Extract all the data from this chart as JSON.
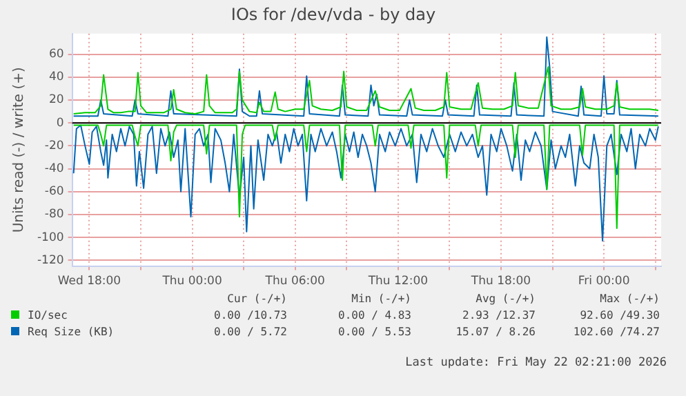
{
  "chart_data": {
    "type": "line",
    "title": "IOs for /dev/vda - by day",
    "ylabel": "Units read (-) / write (+)",
    "xlim": [
      "2026-05-20T17:00",
      "2026-05-22T03:20"
    ],
    "xticks": [
      {
        "value": "2026-05-20T18:00",
        "label": "Wed 18:00"
      },
      {
        "value": "2026-05-20T21:00",
        "label": null
      },
      {
        "value": "2026-05-21T00:00",
        "label": "Thu 00:00"
      },
      {
        "value": "2026-05-21T03:00",
        "label": null
      },
      {
        "value": "2026-05-21T06:00",
        "label": "Thu 06:00"
      },
      {
        "value": "2026-05-21T09:00",
        "label": null
      },
      {
        "value": "2026-05-21T12:00",
        "label": "Thu 12:00"
      },
      {
        "value": "2026-05-21T15:00",
        "label": null
      },
      {
        "value": "2026-05-21T18:00",
        "label": "Thu 18:00"
      },
      {
        "value": "2026-05-21T21:00",
        "label": null
      },
      {
        "value": "2026-05-22T00:00",
        "label": "Fri 00:00"
      },
      {
        "value": "2026-05-22T03:00",
        "label": null
      }
    ],
    "ylim": [
      -125,
      78
    ],
    "yticks": [
      -120,
      -100,
      -80,
      -60,
      -40,
      -20,
      0,
      20,
      40,
      60
    ],
    "grid": true,
    "legend": "bottom left",
    "ref_lines": [
      {
        "axis": "y",
        "value": 0,
        "color": "#000000"
      }
    ],
    "series": [
      {
        "name": "IO/sec",
        "color": "#00cc00",
        "x": [
          "2026-05-20T17:05",
          "2026-05-20T17:45",
          "2026-05-20T18:20",
          "2026-05-20T18:40",
          "2026-05-20T18:50",
          "2026-05-20T19:05",
          "2026-05-20T19:25",
          "2026-05-20T19:50",
          "2026-05-20T20:15",
          "2026-05-20T20:40",
          "2026-05-20T20:50",
          "2026-05-20T21:00",
          "2026-05-20T21:20",
          "2026-05-20T21:55",
          "2026-05-20T22:20",
          "2026-05-20T22:45",
          "2026-05-20T22:55",
          "2026-05-20T23:05",
          "2026-05-20T23:35",
          "2026-05-21T00:10",
          "2026-05-21T00:40",
          "2026-05-21T00:50",
          "2026-05-21T01:00",
          "2026-05-21T01:20",
          "2026-05-21T01:50",
          "2026-05-21T02:20",
          "2026-05-21T02:35",
          "2026-05-21T02:45",
          "2026-05-21T02:55",
          "2026-05-21T03:20",
          "2026-05-21T03:45",
          "2026-05-21T03:55",
          "2026-05-21T04:10",
          "2026-05-21T04:35",
          "2026-05-21T04:50",
          "2026-05-21T05:00",
          "2026-05-21T05:25",
          "2026-05-21T06:00",
          "2026-05-21T06:30",
          "2026-05-21T06:50",
          "2026-05-21T07:00",
          "2026-05-21T07:30",
          "2026-05-21T08:10",
          "2026-05-21T08:40",
          "2026-05-21T08:50",
          "2026-05-21T09:00",
          "2026-05-21T09:35",
          "2026-05-21T10:10",
          "2026-05-21T10:40",
          "2026-05-21T10:55",
          "2026-05-21T11:30",
          "2026-05-21T12:05",
          "2026-05-21T12:45",
          "2026-05-21T13:00",
          "2026-05-21T13:30",
          "2026-05-21T14:10",
          "2026-05-21T14:40",
          "2026-05-21T14:50",
          "2026-05-21T15:00",
          "2026-05-21T15:40",
          "2026-05-21T16:15",
          "2026-05-21T16:40",
          "2026-05-21T16:55",
          "2026-05-21T17:30",
          "2026-05-21T18:10",
          "2026-05-21T18:40",
          "2026-05-21T18:50",
          "2026-05-21T19:00",
          "2026-05-21T19:35",
          "2026-05-21T20:10",
          "2026-05-21T20:45",
          "2026-05-21T20:55",
          "2026-05-21T21:30",
          "2026-05-21T22:05",
          "2026-05-21T22:35",
          "2026-05-21T22:45",
          "2026-05-21T22:55",
          "2026-05-21T23:30",
          "2026-05-22T00:10",
          "2026-05-22T00:35",
          "2026-05-22T00:45",
          "2026-05-22T00:55",
          "2026-05-22T01:30",
          "2026-05-22T02:05",
          "2026-05-22T02:40",
          "2026-05-22T03:10"
        ],
        "values": [
          8,
          9,
          9,
          15,
          42,
          12,
          9,
          9,
          10,
          10,
          44,
          15,
          9,
          9,
          9,
          12,
          29,
          12,
          9,
          8,
          10,
          42,
          15,
          9,
          9,
          9,
          12,
          45,
          20,
          10,
          9,
          18,
          10,
          10,
          27,
          12,
          10,
          12,
          12,
          37,
          15,
          12,
          11,
          14,
          45,
          14,
          11,
          11,
          28,
          14,
          11,
          11,
          30,
          13,
          11,
          11,
          14,
          44,
          14,
          12,
          12,
          35,
          13,
          12,
          12,
          15,
          44,
          15,
          13,
          13,
          49,
          15,
          12,
          12,
          14,
          30,
          14,
          12,
          12,
          15,
          35,
          14,
          12,
          12,
          12,
          11
        ]
      },
      {
        "color": "#00cc00",
        "x": [
          "2026-05-20T17:05",
          "2026-05-20T18:30",
          "2026-05-20T18:40",
          "2026-05-20T18:50",
          "2026-05-20T19:00",
          "2026-05-20T20:30",
          "2026-05-20T20:40",
          "2026-05-20T20:50",
          "2026-05-20T21:00",
          "2026-05-20T22:35",
          "2026-05-20T22:45",
          "2026-05-20T22:55",
          "2026-05-20T23:05",
          "2026-05-21T00:40",
          "2026-05-21T00:50",
          "2026-05-21T01:00",
          "2026-05-21T02:35",
          "2026-05-21T02:45",
          "2026-05-21T02:55",
          "2026-05-21T03:05",
          "2026-05-21T04:40",
          "2026-05-21T04:50",
          "2026-05-21T05:00",
          "2026-05-21T06:30",
          "2026-05-21T06:40",
          "2026-05-21T06:50",
          "2026-05-21T08:35",
          "2026-05-21T08:45",
          "2026-05-21T08:55",
          "2026-05-21T10:30",
          "2026-05-21T10:40",
          "2026-05-21T10:50",
          "2026-05-21T12:35",
          "2026-05-21T12:45",
          "2026-05-21T12:55",
          "2026-05-21T14:40",
          "2026-05-21T14:50",
          "2026-05-21T15:00",
          "2026-05-21T16:30",
          "2026-05-21T16:40",
          "2026-05-21T16:50",
          "2026-05-21T18:40",
          "2026-05-21T18:50",
          "2026-05-21T19:00",
          "2026-05-21T20:30",
          "2026-05-21T20:40",
          "2026-05-21T20:50",
          "2026-05-21T22:35",
          "2026-05-21T22:45",
          "2026-05-21T22:55",
          "2026-05-22T00:35",
          "2026-05-22T00:45",
          "2026-05-22T00:55",
          "2026-05-22T03:10"
        ],
        "values": [
          -2,
          -2,
          -10,
          -20,
          -2,
          -2,
          -12,
          -20,
          -2,
          -2,
          -33,
          -8,
          -2,
          -2,
          -27,
          -2,
          -2,
          -82,
          -10,
          -2,
          -2,
          -15,
          -2,
          -2,
          -25,
          -2,
          -2,
          -50,
          -2,
          -2,
          -20,
          -2,
          -2,
          -22,
          -2,
          -2,
          -48,
          -2,
          -2,
          -20,
          -2,
          -2,
          -30,
          -2,
          -2,
          -58,
          -2,
          -2,
          -28,
          -2,
          -2,
          -92,
          -2,
          -2
        ]
      },
      {
        "name": "Req Size (KB)",
        "color": "#0066b3",
        "x": [
          "2026-05-20T17:05",
          "2026-05-20T18:30",
          "2026-05-20T18:40",
          "2026-05-20T18:50",
          "2026-05-20T20:30",
          "2026-05-20T20:40",
          "2026-05-20T20:50",
          "2026-05-20T22:35",
          "2026-05-20T22:45",
          "2026-05-20T22:55",
          "2026-05-21T02:35",
          "2026-05-21T02:45",
          "2026-05-21T02:55",
          "2026-05-21T03:20",
          "2026-05-21T03:45",
          "2026-05-21T03:55",
          "2026-05-21T04:05",
          "2026-05-21T06:30",
          "2026-05-21T06:40",
          "2026-05-21T06:50",
          "2026-05-21T08:35",
          "2026-05-21T08:45",
          "2026-05-21T08:55",
          "2026-05-21T10:15",
          "2026-05-21T10:25",
          "2026-05-21T10:35",
          "2026-05-21T10:45",
          "2026-05-21T10:55",
          "2026-05-21T12:30",
          "2026-05-21T12:40",
          "2026-05-21T12:50",
          "2026-05-21T14:35",
          "2026-05-21T14:45",
          "2026-05-21T14:55",
          "2026-05-21T16:25",
          "2026-05-21T16:35",
          "2026-05-21T16:45",
          "2026-05-21T18:35",
          "2026-05-21T18:45",
          "2026-05-21T18:55",
          "2026-05-21T20:30",
          "2026-05-21T20:40",
          "2026-05-21T20:50",
          "2026-05-21T21:00",
          "2026-05-21T22:30",
          "2026-05-21T22:40",
          "2026-05-21T22:50",
          "2026-05-21T23:50",
          "2026-05-22T00:00",
          "2026-05-22T00:10",
          "2026-05-22T00:35",
          "2026-05-22T00:45",
          "2026-05-22T00:55",
          "2026-05-22T03:10"
        ],
        "values": [
          6,
          6,
          20,
          8,
          6,
          20,
          8,
          6,
          28,
          8,
          6,
          47,
          10,
          6,
          6,
          28,
          8,
          6,
          41,
          8,
          6,
          33,
          7,
          6,
          33,
          15,
          25,
          7,
          6,
          20,
          7,
          6,
          20,
          7,
          6,
          33,
          7,
          6,
          35,
          7,
          6,
          75,
          49,
          10,
          6,
          32,
          7,
          6,
          41,
          8,
          8,
          37,
          7,
          6
        ]
      },
      {
        "color": "#0066b3",
        "x": [
          "2026-05-20T17:05",
          "2026-05-20T17:15",
          "2026-05-20T17:30",
          "2026-05-20T17:45",
          "2026-05-20T18:00",
          "2026-05-20T18:10",
          "2026-05-20T18:25",
          "2026-05-20T18:40",
          "2026-05-20T18:50",
          "2026-05-20T19:00",
          "2026-05-20T19:05",
          "2026-05-20T19:20",
          "2026-05-20T19:35",
          "2026-05-20T19:50",
          "2026-05-20T20:05",
          "2026-05-20T20:20",
          "2026-05-20T20:35",
          "2026-05-20T20:45",
          "2026-05-20T20:55",
          "2026-05-20T21:10",
          "2026-05-20T21:25",
          "2026-05-20T21:40",
          "2026-05-20T21:55",
          "2026-05-20T22:10",
          "2026-05-20T22:25",
          "2026-05-20T22:40",
          "2026-05-20T22:55",
          "2026-05-20T23:10",
          "2026-05-20T23:20",
          "2026-05-20T23:35",
          "2026-05-20T23:55",
          "2026-05-21T00:10",
          "2026-05-21T00:25",
          "2026-05-21T00:40",
          "2026-05-21T00:55",
          "2026-05-21T01:05",
          "2026-05-21T01:20",
          "2026-05-21T01:40",
          "2026-05-21T01:55",
          "2026-05-21T02:10",
          "2026-05-21T02:25",
          "2026-05-21T02:45",
          "2026-05-21T03:00",
          "2026-05-21T03:10",
          "2026-05-21T03:25",
          "2026-05-21T03:35",
          "2026-05-21T03:50",
          "2026-05-21T04:10",
          "2026-05-21T04:25",
          "2026-05-21T04:40",
          "2026-05-21T04:55",
          "2026-05-21T05:10",
          "2026-05-21T05:25",
          "2026-05-21T05:40",
          "2026-05-21T05:55",
          "2026-05-21T06:10",
          "2026-05-21T06:25",
          "2026-05-21T06:40",
          "2026-05-21T06:55",
          "2026-05-21T07:10",
          "2026-05-21T07:30",
          "2026-05-21T07:50",
          "2026-05-21T08:10",
          "2026-05-21T08:25",
          "2026-05-21T08:40",
          "2026-05-21T08:55",
          "2026-05-21T09:10",
          "2026-05-21T09:25",
          "2026-05-21T09:40",
          "2026-05-21T09:55",
          "2026-05-21T10:10",
          "2026-05-21T10:25",
          "2026-05-21T10:40",
          "2026-05-21T10:55",
          "2026-05-21T11:15",
          "2026-05-21T11:30",
          "2026-05-21T11:50",
          "2026-05-21T12:10",
          "2026-05-21T12:30",
          "2026-05-21T12:50",
          "2026-05-21T13:05",
          "2026-05-21T13:20",
          "2026-05-21T13:40",
          "2026-05-21T14:00",
          "2026-05-21T14:20",
          "2026-05-21T14:40",
          "2026-05-21T15:00",
          "2026-05-21T15:20",
          "2026-05-21T15:40",
          "2026-05-21T16:00",
          "2026-05-21T16:20",
          "2026-05-21T16:40",
          "2026-05-21T16:55",
          "2026-05-21T17:10",
          "2026-05-21T17:25",
          "2026-05-21T17:45",
          "2026-05-21T18:00",
          "2026-05-21T18:20",
          "2026-05-21T18:40",
          "2026-05-21T18:55",
          "2026-05-21T19:10",
          "2026-05-21T19:25",
          "2026-05-21T19:40",
          "2026-05-21T20:00",
          "2026-05-21T20:20",
          "2026-05-21T20:40",
          "2026-05-21T20:55",
          "2026-05-21T21:10",
          "2026-05-21T21:30",
          "2026-05-21T21:45",
          "2026-05-21T22:00",
          "2026-05-21T22:20",
          "2026-05-21T22:35",
          "2026-05-21T22:50",
          "2026-05-21T23:10",
          "2026-05-21T23:25",
          "2026-05-21T23:40",
          "2026-05-21T23:55",
          "2026-05-22T00:10",
          "2026-05-22T00:25",
          "2026-05-22T00:45",
          "2026-05-22T01:00",
          "2026-05-22T01:20",
          "2026-05-22T01:35",
          "2026-05-22T01:50",
          "2026-05-22T02:05",
          "2026-05-22T02:25",
          "2026-05-22T02:40",
          "2026-05-22T03:00",
          "2026-05-22T03:10"
        ],
        "values": [
          -44,
          -5,
          -2,
          -20,
          -36,
          -8,
          -3,
          -25,
          -37,
          -15,
          -48,
          -10,
          -25,
          -5,
          -20,
          -3,
          -10,
          -55,
          -25,
          -57,
          -10,
          -3,
          -44,
          -5,
          -20,
          -8,
          -30,
          -15,
          -60,
          -5,
          -82,
          -10,
          -5,
          -20,
          -10,
          -52,
          -5,
          -15,
          -35,
          -60,
          -10,
          -65,
          -30,
          -95,
          -20,
          -75,
          -15,
          -50,
          -10,
          -20,
          -8,
          -35,
          -10,
          -25,
          -5,
          -20,
          -10,
          -68,
          -10,
          -25,
          -5,
          -20,
          -8,
          -25,
          -48,
          -10,
          -25,
          -8,
          -30,
          -10,
          -20,
          -35,
          -60,
          -10,
          -25,
          -8,
          -20,
          -5,
          -20,
          -10,
          -52,
          -10,
          -25,
          -5,
          -20,
          -30,
          -10,
          -25,
          -8,
          -20,
          -10,
          -30,
          -20,
          -63,
          -10,
          -25,
          -5,
          -20,
          -42,
          -10,
          -50,
          -15,
          -25,
          -8,
          -20,
          -58,
          -15,
          -40,
          -20,
          -30,
          -10,
          -55,
          -20,
          -35,
          -40,
          -10,
          -30,
          -103,
          -20,
          -10,
          -45,
          -10,
          -25,
          -5,
          -40,
          -10,
          -20,
          -5,
          -15,
          -3
        ]
      }
    ],
    "annotations": [
      "Cur (-/+)",
      "Min (-/+)",
      "Avg (-/+)",
      "Max (-/+)",
      "0.00 /10.73",
      "0.00 / 4.83",
      "2.93 /12.37",
      "92.60 /49.30",
      "0.00 / 5.72",
      "0.00 / 5.53",
      "15.07 / 8.26",
      "102.60 /74.27",
      "Last update: Fri May 22 02:21:00 2026"
    ]
  }
}
